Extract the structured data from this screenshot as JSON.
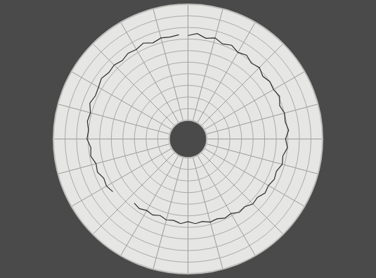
{
  "chart_data": {
    "type": "polar",
    "x": [
      0,
      5,
      10,
      15,
      20,
      25,
      30,
      35,
      40,
      45,
      50,
      55,
      60,
      65,
      70,
      75,
      80,
      85,
      90,
      95,
      100,
      105,
      110,
      115,
      120,
      125,
      130,
      135,
      140,
      145,
      150,
      155,
      160,
      165,
      170,
      175,
      180,
      185,
      190,
      195,
      200,
      205,
      210,
      215,
      220,
      225,
      230,
      235,
      240,
      245,
      250,
      255,
      260,
      265,
      270,
      275,
      280,
      285,
      290,
      295,
      300,
      305,
      310,
      315,
      320,
      325,
      330,
      335,
      340,
      345,
      350,
      355
    ],
    "values": [
      73,
      75,
      72,
      74,
      71,
      73,
      70,
      72,
      69,
      71,
      68,
      70,
      69,
      71,
      68,
      70,
      69,
      71,
      68,
      70,
      67,
      68,
      65,
      66,
      64,
      65,
      62,
      63,
      60,
      61,
      58,
      59,
      57,
      58,
      56,
      57,
      55,
      57,
      55,
      56,
      54,
      56,
      55,
      57,
      56,
      null,
      null,
      63,
      65,
      64,
      67,
      66,
      69,
      68,
      71,
      70,
      72,
      71,
      74,
      72,
      73,
      75,
      73,
      74,
      72,
      74,
      73,
      75,
      72,
      74,
      73,
      74
    ],
    "color": "#2b2b2b",
    "xlim": [
      0,
      360
    ],
    "xticks": [
      0,
      15,
      30,
      45,
      60,
      75,
      90,
      105,
      120,
      135,
      150,
      165,
      180,
      195,
      210,
      225,
      240,
      255,
      270,
      285,
      300,
      315,
      330,
      345
    ],
    "ylim": [
      0,
      100
    ],
    "yticks": [
      0,
      10,
      20,
      30,
      40,
      50,
      60,
      70,
      80,
      90,
      100
    ],
    "grid": true,
    "tick_labels": false
  }
}
